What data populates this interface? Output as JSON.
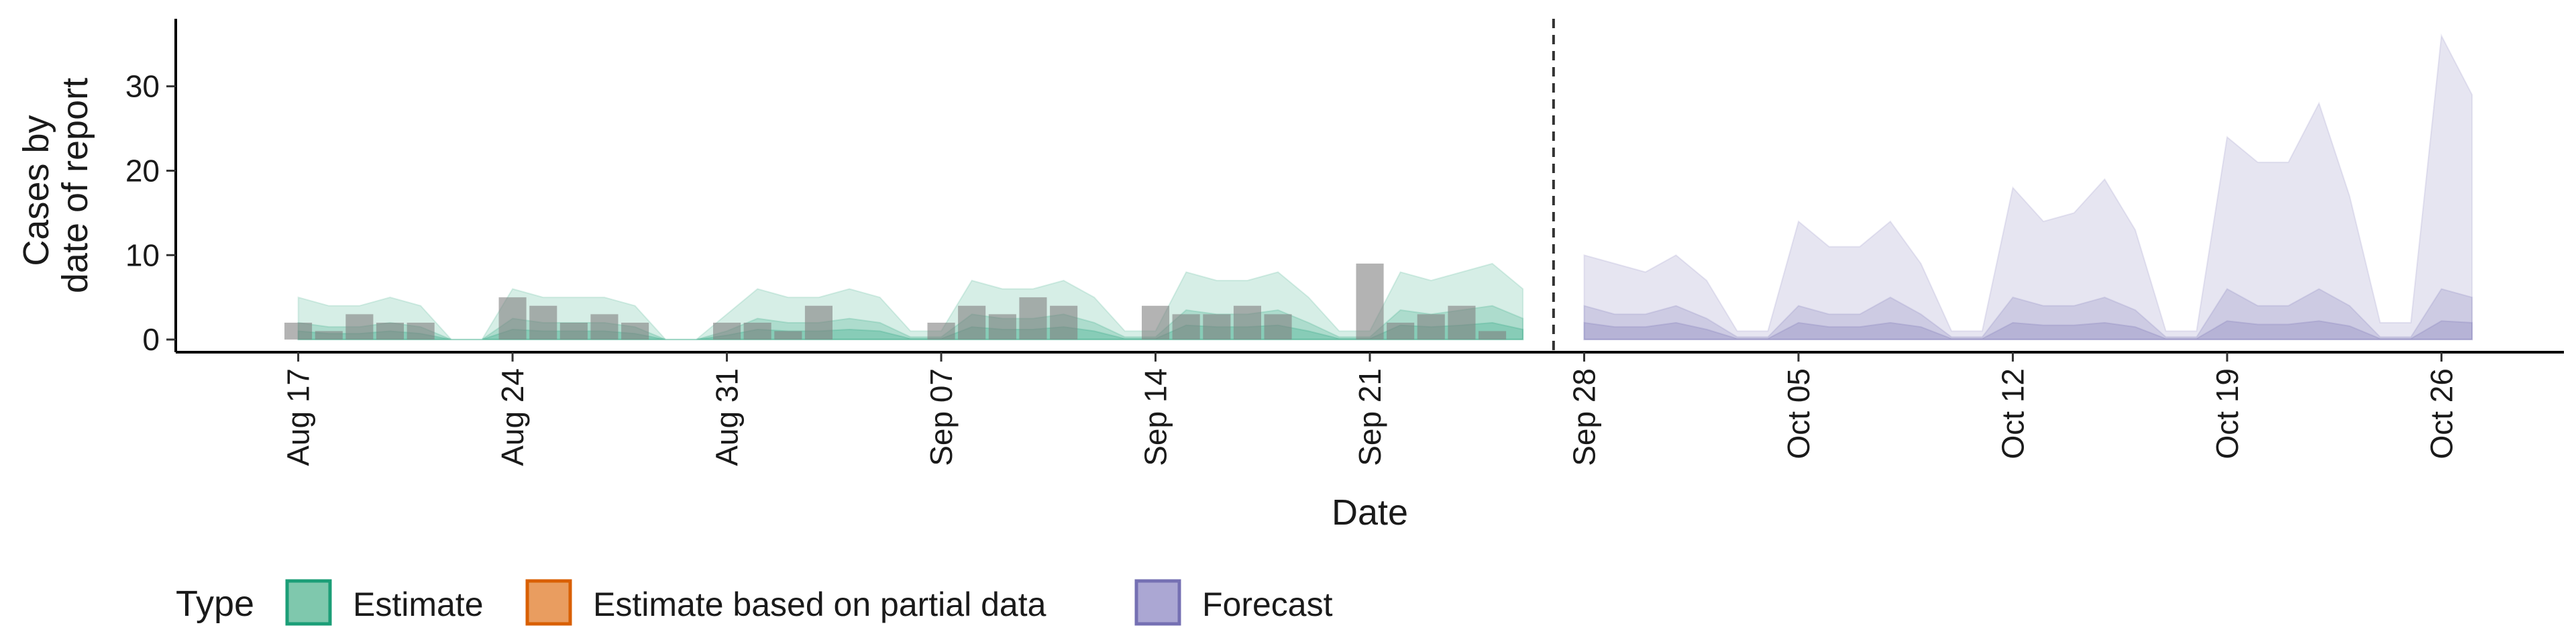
{
  "chart_data": {
    "type": "area",
    "xlabel": "Date",
    "ylabel_lines": [
      "Cases by",
      "date of report"
    ],
    "ylim": [
      -1.5,
      38
    ],
    "yticks": [
      0,
      10,
      20,
      30
    ],
    "x_range": [
      "2020-08-13",
      "2020-10-30"
    ],
    "xticks": [
      {
        "date": "2020-08-17",
        "label": "Aug 17"
      },
      {
        "date": "2020-08-24",
        "label": "Aug 24"
      },
      {
        "date": "2020-08-31",
        "label": "Aug 31"
      },
      {
        "date": "2020-09-07",
        "label": "Sep 07"
      },
      {
        "date": "2020-09-14",
        "label": "Sep 14"
      },
      {
        "date": "2020-09-21",
        "label": "Sep 21"
      },
      {
        "date": "2020-09-28",
        "label": "Sep 28"
      },
      {
        "date": "2020-10-05",
        "label": "Oct 05"
      },
      {
        "date": "2020-10-12",
        "label": "Oct 12"
      },
      {
        "date": "2020-10-19",
        "label": "Oct 19"
      },
      {
        "date": "2020-10-26",
        "label": "Oct 26"
      }
    ],
    "vline_date": "2020-09-27",
    "observed_cases": {
      "dates": [
        "2020-08-17",
        "2020-08-18",
        "2020-08-19",
        "2020-08-20",
        "2020-08-21",
        "2020-08-22",
        "2020-08-23",
        "2020-08-24",
        "2020-08-25",
        "2020-08-26",
        "2020-08-27",
        "2020-08-28",
        "2020-08-29",
        "2020-08-30",
        "2020-08-31",
        "2020-09-01",
        "2020-09-02",
        "2020-09-03",
        "2020-09-04",
        "2020-09-05",
        "2020-09-06",
        "2020-09-07",
        "2020-09-08",
        "2020-09-09",
        "2020-09-10",
        "2020-09-11",
        "2020-09-12",
        "2020-09-13",
        "2020-09-14",
        "2020-09-15",
        "2020-09-16",
        "2020-09-17",
        "2020-09-18",
        "2020-09-19",
        "2020-09-20",
        "2020-09-21",
        "2020-09-22",
        "2020-09-23",
        "2020-09-24",
        "2020-09-25",
        "2020-09-26"
      ],
      "values": [
        2,
        1,
        3,
        2,
        2,
        0,
        0,
        5,
        4,
        2,
        3,
        2,
        0,
        0,
        2,
        2,
        1,
        4,
        0,
        0,
        0,
        2,
        4,
        3,
        5,
        4,
        0,
        0,
        4,
        3,
        3,
        4,
        3,
        0,
        0,
        9,
        2,
        3,
        4,
        1,
        0
      ]
    },
    "series": [
      {
        "name": "Estimate",
        "color": "#1b9e77",
        "dates": [
          "2020-08-17",
          "2020-08-18",
          "2020-08-19",
          "2020-08-20",
          "2020-08-21",
          "2020-08-22",
          "2020-08-23",
          "2020-08-24",
          "2020-08-25",
          "2020-08-26",
          "2020-08-27",
          "2020-08-28",
          "2020-08-29",
          "2020-08-30",
          "2020-08-31",
          "2020-09-01",
          "2020-09-02",
          "2020-09-03",
          "2020-09-04",
          "2020-09-05",
          "2020-09-06",
          "2020-09-07",
          "2020-09-08",
          "2020-09-09",
          "2020-09-10",
          "2020-09-11",
          "2020-09-12",
          "2020-09-13",
          "2020-09-14",
          "2020-09-15",
          "2020-09-16",
          "2020-09-17",
          "2020-09-18",
          "2020-09-19",
          "2020-09-20",
          "2020-09-21",
          "2020-09-22",
          "2020-09-23",
          "2020-09-24",
          "2020-09-25",
          "2020-09-26"
        ],
        "upper90": [
          5,
          4,
          4,
          5,
          4,
          0,
          0,
          6,
          5,
          5,
          5,
          4,
          0,
          0,
          3,
          6,
          5,
          5,
          6,
          5,
          1,
          1,
          7,
          6,
          6,
          7,
          5,
          1,
          1,
          8,
          7,
          7,
          8,
          5,
          1,
          1,
          8,
          7,
          8,
          9,
          6
        ],
        "lower90": [
          0,
          0,
          0,
          0,
          0,
          0,
          0,
          0,
          0,
          0,
          0,
          0,
          0,
          0,
          0,
          0,
          0,
          0,
          0,
          0,
          0,
          0,
          0,
          0,
          0,
          0,
          0,
          0,
          0,
          0,
          0,
          0,
          0,
          0,
          0,
          0,
          0,
          0,
          0,
          0,
          0
        ],
        "upper50": [
          2,
          1.5,
          1.5,
          2,
          1.5,
          0,
          0,
          2.5,
          2,
          2,
          2,
          1.5,
          0,
          0,
          1,
          2.5,
          2,
          2,
          2.5,
          2,
          0.3,
          0.3,
          3,
          2.5,
          2.5,
          3,
          2,
          0.3,
          0.3,
          3.5,
          3,
          3,
          3.5,
          2,
          0.3,
          0.3,
          3.5,
          3,
          3.5,
          4,
          2.5
        ],
        "lower50": [
          0,
          0,
          0,
          0,
          0,
          0,
          0,
          0,
          0,
          0,
          0,
          0,
          0,
          0,
          0,
          0,
          0,
          0,
          0,
          0,
          0,
          0,
          0,
          0,
          0,
          0,
          0,
          0,
          0,
          0,
          0,
          0,
          0,
          0,
          0,
          0,
          0,
          0,
          0,
          0,
          0
        ],
        "upper20": [
          1,
          0.7,
          0.7,
          1,
          0.7,
          0,
          0,
          1.2,
          1,
          1,
          1,
          0.7,
          0,
          0,
          0.5,
          1.2,
          1,
          1,
          1.2,
          1,
          0.1,
          0.1,
          1.5,
          1.2,
          1.2,
          1.5,
          1,
          0.1,
          0.1,
          1.7,
          1.5,
          1.5,
          1.7,
          1,
          0.1,
          0.1,
          1.7,
          1.5,
          1.7,
          2,
          1.2
        ],
        "lower20": [
          0,
          0,
          0,
          0,
          0,
          0,
          0,
          0,
          0,
          0,
          0,
          0,
          0,
          0,
          0,
          0,
          0,
          0,
          0,
          0,
          0,
          0,
          0,
          0,
          0,
          0,
          0,
          0,
          0,
          0,
          0,
          0,
          0,
          0,
          0,
          0,
          0,
          0,
          0,
          0,
          0
        ]
      },
      {
        "name": "Estimate based on partial data",
        "color": "#d95f02",
        "dates": [],
        "upper90": [],
        "lower90": []
      },
      {
        "name": "Forecast",
        "color": "#7570b3",
        "dates": [
          "2020-09-28",
          "2020-09-29",
          "2020-09-30",
          "2020-10-01",
          "2020-10-02",
          "2020-10-03",
          "2020-10-04",
          "2020-10-05",
          "2020-10-06",
          "2020-10-07",
          "2020-10-08",
          "2020-10-09",
          "2020-10-10",
          "2020-10-11",
          "2020-10-12",
          "2020-10-13",
          "2020-10-14",
          "2020-10-15",
          "2020-10-16",
          "2020-10-17",
          "2020-10-18",
          "2020-10-19",
          "2020-10-20",
          "2020-10-21",
          "2020-10-22",
          "2020-10-23",
          "2020-10-24",
          "2020-10-25",
          "2020-10-26",
          "2020-10-27"
        ],
        "upper90": [
          10,
          9,
          8,
          10,
          7,
          1,
          1,
          14,
          11,
          11,
          14,
          9,
          1,
          1,
          18,
          14,
          15,
          19,
          13,
          1,
          1,
          24,
          21,
          21,
          28,
          17,
          2,
          2,
          36,
          29
        ],
        "lower90": [
          0,
          0,
          0,
          0,
          0,
          0,
          0,
          0,
          0,
          0,
          0,
          0,
          0,
          0,
          0,
          0,
          0,
          0,
          0,
          0,
          0,
          0,
          0,
          0,
          0,
          0,
          0,
          0,
          0,
          0
        ],
        "upper50": [
          4,
          3,
          3,
          4,
          2.5,
          0.3,
          0.3,
          4,
          3,
          3,
          5,
          3,
          0.3,
          0.3,
          5,
          4,
          4,
          5,
          3.5,
          0.3,
          0.3,
          6,
          4,
          4,
          6,
          4,
          0.3,
          0.3,
          6,
          5
        ],
        "lower50": [
          0,
          0,
          0,
          0,
          0,
          0,
          0,
          0,
          0,
          0,
          0,
          0,
          0,
          0,
          0,
          0,
          0,
          0,
          0,
          0,
          0,
          0,
          0,
          0,
          0,
          0,
          0,
          0,
          0,
          0
        ],
        "upper20": [
          2,
          1.5,
          1.5,
          2,
          1.2,
          0.1,
          0.1,
          2,
          1.5,
          1.5,
          2,
          1.5,
          0.1,
          0.1,
          2,
          1.7,
          1.7,
          2,
          1.5,
          0.1,
          0.1,
          2.2,
          1.8,
          1.8,
          2.2,
          1.6,
          0.1,
          0.1,
          2.2,
          2
        ],
        "lower20": [
          0,
          0,
          0,
          0,
          0,
          0,
          0,
          0,
          0,
          0,
          0,
          0,
          0,
          0,
          0,
          0,
          0,
          0,
          0,
          0,
          0,
          0,
          0,
          0,
          0,
          0,
          0,
          0,
          0,
          0
        ]
      }
    ],
    "legend": {
      "title": "Type",
      "position": "bottom-left",
      "items": [
        {
          "label": "Estimate",
          "fill": "#7fc8ad",
          "stroke": "#1b9e77"
        },
        {
          "label": "Estimate based on partial data",
          "fill": "#e99d60",
          "stroke": "#d95f02"
        },
        {
          "label": "Forecast",
          "fill": "#aba7d3",
          "stroke": "#7570b3"
        }
      ]
    },
    "grid": false,
    "bar_color": "#808080"
  }
}
